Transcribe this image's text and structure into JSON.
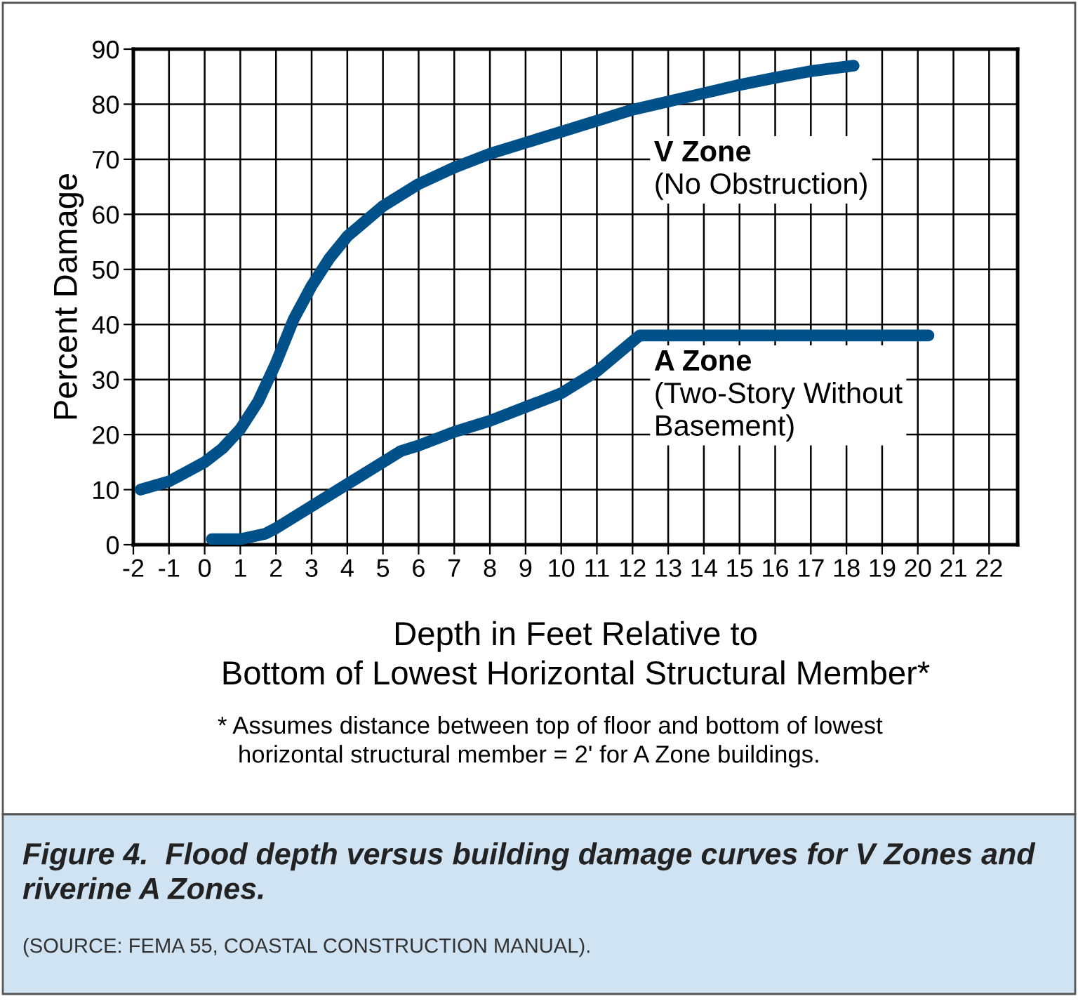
{
  "chart_data": {
    "type": "line",
    "title": "Figure 4.  Flood depth versus building damage curves for V Zones and riverine A Zones.",
    "xlabel": "Depth in Feet Relative to\nBottom of Lowest Horizontal Structural Member*",
    "ylabel": "Percent Damage",
    "series": [
      {
        "name": "V Zone",
        "color": "#00508a",
        "x": [
          -1.8,
          -1,
          0,
          0.5,
          1,
          1.5,
          2,
          2.5,
          3,
          3.5,
          4,
          5,
          6,
          7,
          8,
          9,
          10,
          11,
          12,
          13,
          14,
          15,
          16,
          17,
          18.2
        ],
        "values": [
          10,
          11.5,
          15,
          17.5,
          21,
          26,
          33,
          41,
          47,
          52,
          56,
          61.5,
          65.5,
          68.5,
          71,
          73,
          75,
          77,
          79,
          80.5,
          82,
          83.5,
          84.8,
          86,
          87
        ]
      },
      {
        "name": "A Zone",
        "color": "#00508a",
        "x": [
          0.2,
          1,
          1.7,
          2,
          3,
          4,
          5,
          5.5,
          6,
          7,
          8,
          9,
          10,
          11,
          12.2,
          20.3
        ],
        "values": [
          1,
          1,
          2,
          3,
          7,
          11,
          15,
          17,
          18,
          20.5,
          22.5,
          25,
          27.5,
          31.5,
          38,
          38
        ]
      }
    ],
    "annotations": [
      "(No Obstruction)",
      "(Two-Story Without\nBasement)",
      "* Assumes distance between top of floor and bottom of lowest\n   horizontal structural member = 2' for A Zone buildings.",
      "(SOURCE: FEMA 55, COASTAL CONSTRUCTION MANUAL)."
    ],
    "xlim": [
      -2,
      22.8
    ],
    "xticks": [
      -2,
      -1,
      0,
      1,
      2,
      3,
      4,
      5,
      6,
      7,
      8,
      9,
      10,
      11,
      12,
      13,
      14,
      15,
      16,
      17,
      18,
      19,
      20,
      21,
      22
    ],
    "ylim": [
      0,
      90
    ],
    "yticks": [
      0,
      10,
      20,
      30,
      40,
      50,
      60,
      70,
      80,
      90
    ],
    "grid": true,
    "legend": false,
    "marker": "none",
    "line_style": "solid"
  }
}
